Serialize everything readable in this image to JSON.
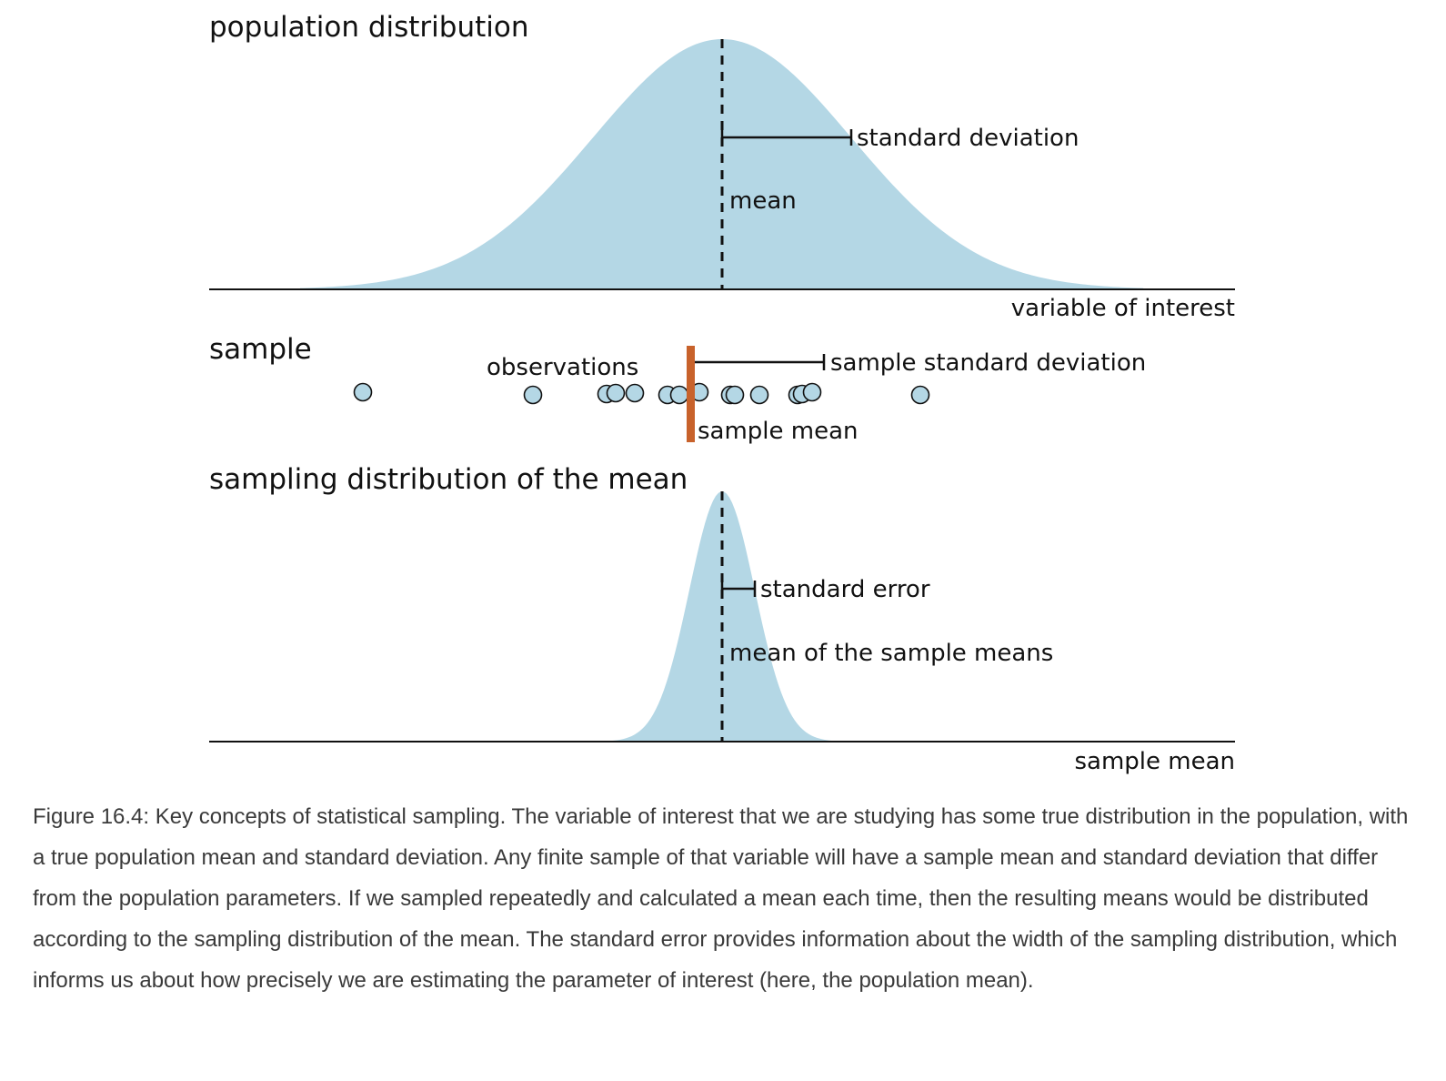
{
  "population": {
    "title": "population distribution",
    "axis_label": "variable of interest",
    "mean_label": "mean",
    "sd_label": "standard deviation"
  },
  "sample": {
    "title": "sample",
    "observations_label": "observations",
    "sample_sd_label": "sample standard deviation",
    "sample_mean_label": "sample mean"
  },
  "sampling": {
    "title": "sampling distribution of the mean",
    "axis_label": "sample mean",
    "se_label": "standard error",
    "mean_label": "mean of the sample means"
  },
  "colors": {
    "distribution_fill": "#b4d7e5",
    "sample_mean_bar": "#c8622b",
    "point_fill": "#b4d7e5",
    "line": "#111111"
  },
  "caption": "Figure 16.4: Key concepts of statistical sampling. The variable of interest that we are studying has some true distribution in the population, with a true population mean and standard deviation. Any finite sample of that variable will have a sample mean and standard deviation that differ from the population parameters. If we sampled repeatedly and calculated a mean each time, then the resulting means would be distributed according to the sampling distribution of the mean. The standard error provides information about the width of the sampling distribution, which informs us about how precisely we are estimating the parameter of interest (here, the population mean)."
}
